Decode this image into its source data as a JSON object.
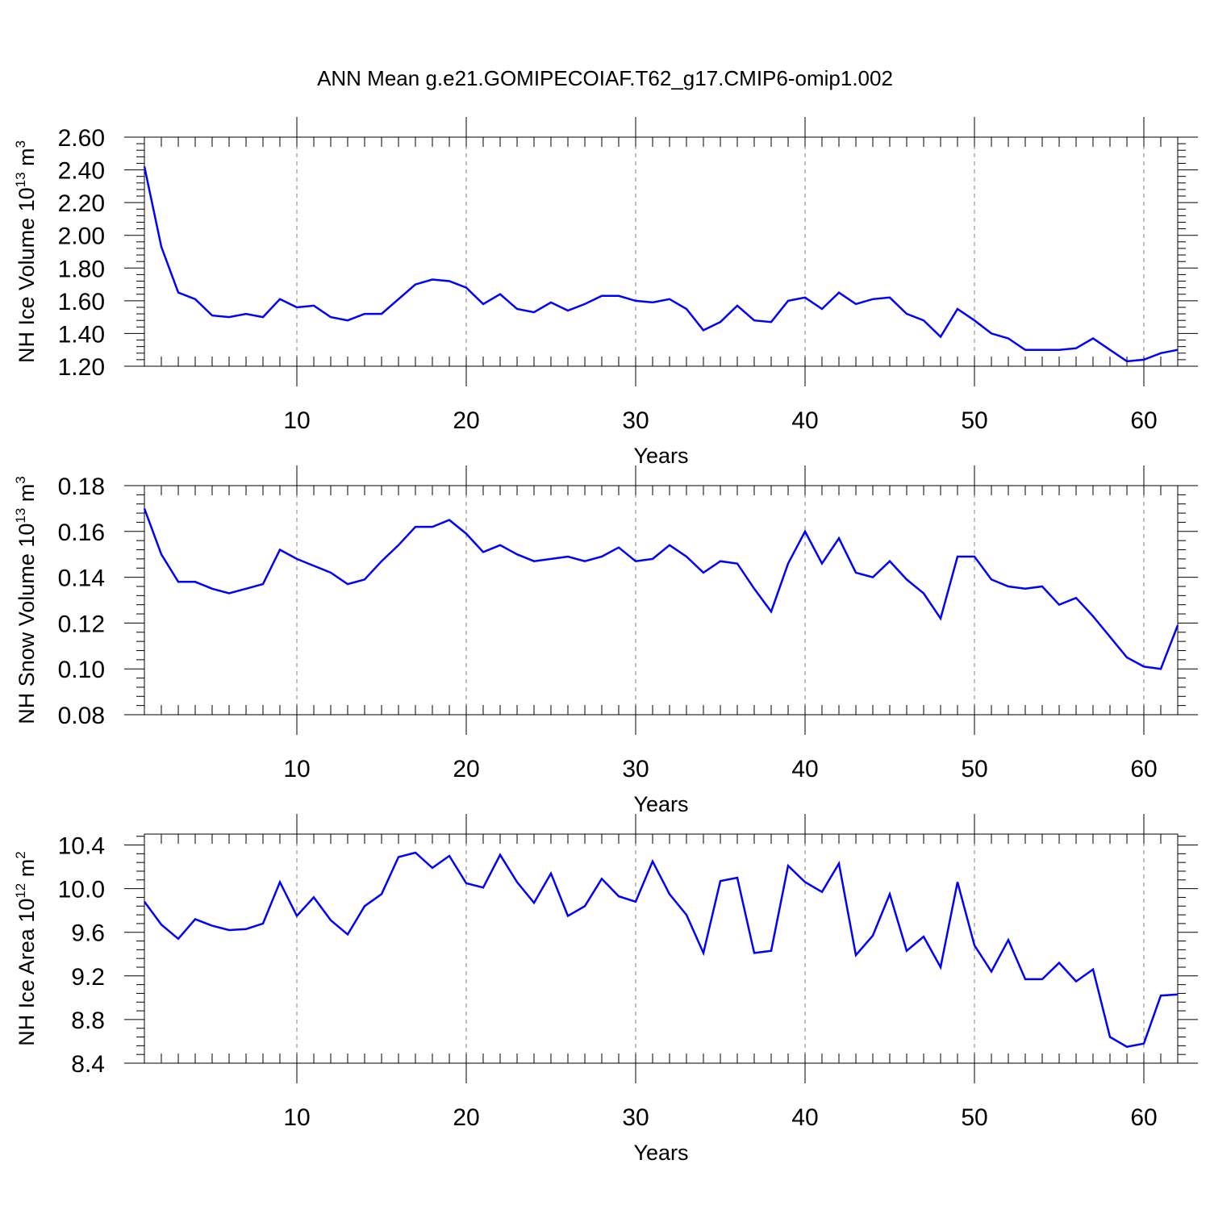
{
  "page_title": "ANN Mean g.e21.GOMIPECOIAF.T62_g17.CMIP6-omip1.002",
  "colors": {
    "series": "#0000ff",
    "axes": "#000000",
    "grid": "#808080",
    "background": "#ffffff"
  },
  "chart_data": [
    {
      "type": "line",
      "ylabel": "NH Ice Volume 10^13 m^3",
      "ylabel_main": "NH Ice Volume 10",
      "ylabel_exp": "13",
      "ylabel_unit": "m",
      "ylabel_unit_exp": "3",
      "xlabel": "Years",
      "xlim": [
        1,
        62
      ],
      "ylim": [
        1.2,
        2.6
      ],
      "yticks": [
        "1.20",
        "1.40",
        "1.60",
        "1.80",
        "2.00",
        "2.20",
        "2.40",
        "2.60"
      ],
      "xticks": [
        "10",
        "20",
        "30",
        "40",
        "50",
        "60"
      ],
      "grid": "vertical dashed at x ticks",
      "x": [
        1,
        2,
        3,
        4,
        5,
        6,
        7,
        8,
        9,
        10,
        11,
        12,
        13,
        14,
        15,
        16,
        17,
        18,
        19,
        20,
        21,
        22,
        23,
        24,
        25,
        26,
        27,
        28,
        29,
        30,
        31,
        32,
        33,
        34,
        35,
        36,
        37,
        38,
        39,
        40,
        41,
        42,
        43,
        44,
        45,
        46,
        47,
        48,
        49,
        50,
        51,
        52,
        53,
        54,
        55,
        56,
        57,
        58,
        59,
        60,
        61,
        62
      ],
      "values": [
        2.42,
        1.93,
        1.65,
        1.61,
        1.51,
        1.5,
        1.52,
        1.5,
        1.61,
        1.56,
        1.57,
        1.5,
        1.48,
        1.52,
        1.52,
        1.61,
        1.7,
        1.73,
        1.72,
        1.68,
        1.58,
        1.64,
        1.55,
        1.53,
        1.59,
        1.54,
        1.58,
        1.63,
        1.63,
        1.6,
        1.59,
        1.61,
        1.55,
        1.42,
        1.47,
        1.57,
        1.48,
        1.47,
        1.6,
        1.62,
        1.55,
        1.65,
        1.58,
        1.61,
        1.62,
        1.52,
        1.48,
        1.38,
        1.55,
        1.48,
        1.4,
        1.37,
        1.3,
        1.3,
        1.3,
        1.31,
        1.37,
        1.3,
        1.23,
        1.24,
        1.28,
        1.3
      ]
    },
    {
      "type": "line",
      "ylabel": "NH Snow Volume 10^13 m^3",
      "ylabel_main": "NH Snow Volume 10",
      "ylabel_exp": "13",
      "ylabel_unit": "m",
      "ylabel_unit_exp": "3",
      "xlabel": "Years",
      "xlim": [
        1,
        62
      ],
      "ylim": [
        0.08,
        0.18
      ],
      "yticks": [
        "0.08",
        "0.10",
        "0.12",
        "0.14",
        "0.16",
        "0.18"
      ],
      "xticks": [
        "10",
        "20",
        "30",
        "40",
        "50",
        "60"
      ],
      "grid": "vertical dashed at x ticks",
      "x": [
        1,
        2,
        3,
        4,
        5,
        6,
        7,
        8,
        9,
        10,
        11,
        12,
        13,
        14,
        15,
        16,
        17,
        18,
        19,
        20,
        21,
        22,
        23,
        24,
        25,
        26,
        27,
        28,
        29,
        30,
        31,
        32,
        33,
        34,
        35,
        36,
        37,
        38,
        39,
        40,
        41,
        42,
        43,
        44,
        45,
        46,
        47,
        48,
        49,
        50,
        51,
        52,
        53,
        54,
        55,
        56,
        57,
        58,
        59,
        60,
        61,
        62
      ],
      "values": [
        0.17,
        0.15,
        0.138,
        0.138,
        0.135,
        0.133,
        0.135,
        0.137,
        0.152,
        0.148,
        0.145,
        0.142,
        0.137,
        0.139,
        0.147,
        0.154,
        0.162,
        0.162,
        0.165,
        0.159,
        0.151,
        0.154,
        0.15,
        0.147,
        0.148,
        0.149,
        0.147,
        0.149,
        0.153,
        0.147,
        0.148,
        0.154,
        0.149,
        0.142,
        0.147,
        0.146,
        0.135,
        0.125,
        0.146,
        0.16,
        0.146,
        0.157,
        0.142,
        0.14,
        0.147,
        0.139,
        0.133,
        0.122,
        0.149,
        0.149,
        0.139,
        0.136,
        0.135,
        0.136,
        0.128,
        0.131,
        0.123,
        0.114,
        0.105,
        0.101,
        0.1,
        0.119
      ]
    },
    {
      "type": "line",
      "ylabel": "NH Ice Area 10^12 m^2",
      "ylabel_main": "NH Ice Area 10",
      "ylabel_exp": "12",
      "ylabel_unit": "m",
      "ylabel_unit_exp": "2",
      "xlabel": "Years",
      "xlim": [
        1,
        62
      ],
      "ylim": [
        8.4,
        10.5
      ],
      "yticks": [
        "8.4",
        "8.8",
        "9.2",
        "9.6",
        "10.0",
        "10.4"
      ],
      "xticks": [
        "10",
        "20",
        "30",
        "40",
        "50",
        "60"
      ],
      "grid": "vertical dashed at x ticks",
      "x": [
        1,
        2,
        3,
        4,
        5,
        6,
        7,
        8,
        9,
        10,
        11,
        12,
        13,
        14,
        15,
        16,
        17,
        18,
        19,
        20,
        21,
        22,
        23,
        24,
        25,
        26,
        27,
        28,
        29,
        30,
        31,
        32,
        33,
        34,
        35,
        36,
        37,
        38,
        39,
        40,
        41,
        42,
        43,
        44,
        45,
        46,
        47,
        48,
        49,
        50,
        51,
        52,
        53,
        54,
        55,
        56,
        57,
        58,
        59,
        60,
        61,
        62
      ],
      "values": [
        9.88,
        9.67,
        9.54,
        9.72,
        9.66,
        9.62,
        9.63,
        9.68,
        10.06,
        9.75,
        9.92,
        9.71,
        9.58,
        9.84,
        9.95,
        10.29,
        10.33,
        10.19,
        10.3,
        10.05,
        10.01,
        10.31,
        10.06,
        9.87,
        10.14,
        9.75,
        9.84,
        10.09,
        9.93,
        9.88,
        10.25,
        9.95,
        9.76,
        9.41,
        10.07,
        10.1,
        9.41,
        9.43,
        10.21,
        10.06,
        9.97,
        10.23,
        9.39,
        9.57,
        9.95,
        9.43,
        9.56,
        9.28,
        10.06,
        9.48,
        9.24,
        9.53,
        9.17,
        9.17,
        9.32,
        9.15,
        9.26,
        8.64,
        8.55,
        8.58,
        9.02,
        9.03
      ]
    }
  ]
}
